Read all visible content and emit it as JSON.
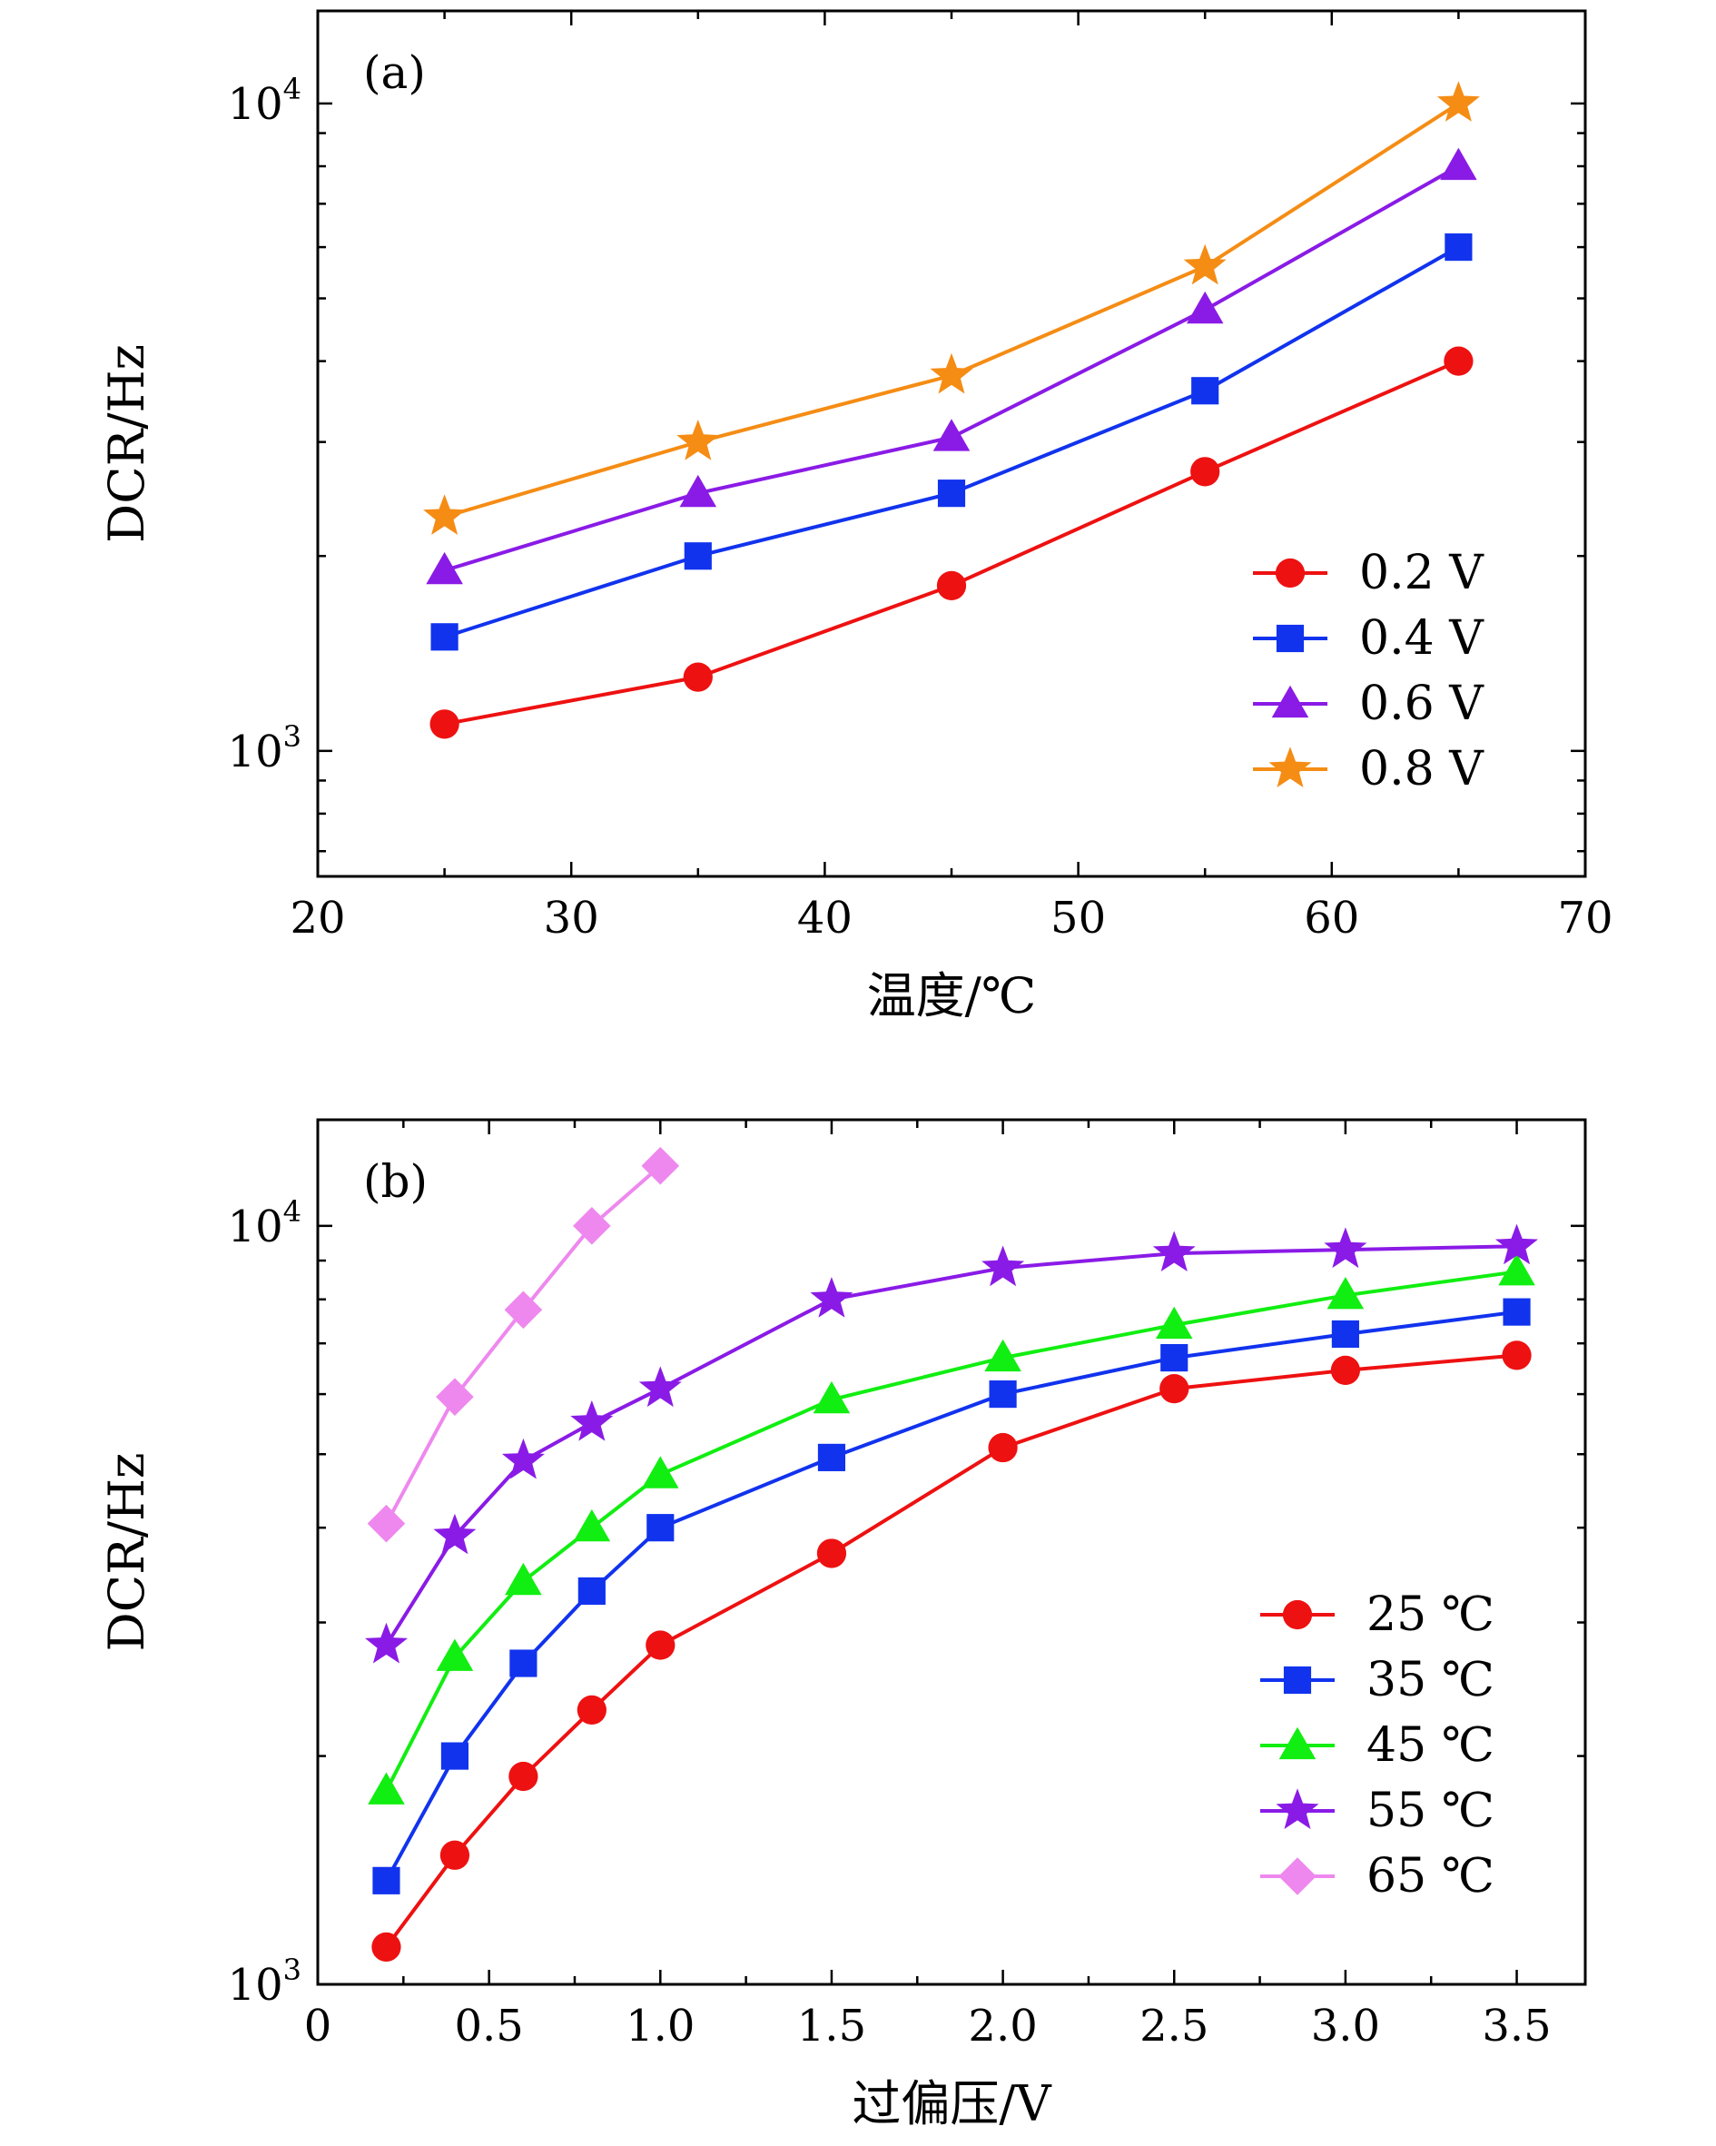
{
  "chart_data": [
    {
      "type": "line",
      "panel_label": "(a)",
      "xlabel": "温度/℃",
      "ylabel": "DCR/Hz",
      "x_ticks": [
        "20",
        "30",
        "40",
        "50",
        "60",
        "70"
      ],
      "y_ticks": [
        {
          "base": "10",
          "exp": "3"
        },
        {
          "base": "10",
          "exp": "4"
        }
      ],
      "xlim": [
        20,
        70
      ],
      "ylim": [
        640,
        13900
      ],
      "yscale": "log",
      "grid": false,
      "legend_position": "lower-right",
      "x": [
        25,
        35,
        45,
        55,
        65
      ],
      "series": [
        {
          "name": "0.2 V",
          "color": "#ee1111",
          "marker": "circle",
          "values": [
            1100,
            1300,
            1800,
            2700,
            4000
          ]
        },
        {
          "name": "0.4 V",
          "color": "#1133ee",
          "marker": "square",
          "values": [
            1500,
            2000,
            2500,
            3600,
            6000
          ]
        },
        {
          "name": "0.6 V",
          "color": "#8a1be6",
          "marker": "triangle",
          "values": [
            1900,
            2500,
            3050,
            4800,
            8000
          ]
        },
        {
          "name": "0.8 V",
          "color": "#f58c14",
          "marker": "star",
          "values": [
            2300,
            3000,
            3800,
            5600,
            10000
          ]
        }
      ]
    },
    {
      "type": "line",
      "panel_label": "(b)",
      "xlabel": "过偏压/V",
      "ylabel": "DCR/Hz",
      "x_ticks": [
        "0",
        "0.5",
        "1.0",
        "1.5",
        "2.0",
        "2.5",
        "3.0",
        "3.5"
      ],
      "y_ticks": [
        {
          "base": "10",
          "exp": "3"
        },
        {
          "base": "10",
          "exp": "4"
        }
      ],
      "xlim": [
        0,
        3.7
      ],
      "ylim": [
        1000,
        13800
      ],
      "yscale": "log",
      "grid": false,
      "legend_position": "lower-right",
      "series": [
        {
          "name": "25 ℃",
          "color": "#ee1111",
          "marker": "circle",
          "x": [
            0.2,
            0.4,
            0.6,
            0.8,
            1.0,
            1.5,
            2.0,
            2.5,
            3.0,
            3.5
          ],
          "values": [
            1120,
            1480,
            1880,
            2300,
            2800,
            3700,
            5100,
            6100,
            6450,
            6750
          ]
        },
        {
          "name": "35 ℃",
          "color": "#1133ee",
          "marker": "square",
          "x": [
            0.2,
            0.4,
            0.6,
            0.8,
            1.0,
            1.5,
            2.0,
            2.5,
            3.0,
            3.5
          ],
          "values": [
            1370,
            2000,
            2650,
            3300,
            4000,
            4950,
            6000,
            6700,
            7200,
            7700
          ]
        },
        {
          "name": "45 ℃",
          "color": "#11ee11",
          "marker": "triangle",
          "x": [
            0.2,
            0.4,
            0.6,
            0.8,
            1.0,
            1.5,
            2.0,
            2.5,
            3.0,
            3.5
          ],
          "values": [
            1800,
            2700,
            3400,
            4000,
            4700,
            5900,
            6700,
            7400,
            8100,
            8700
          ]
        },
        {
          "name": "55 ℃",
          "color": "#8a1be6",
          "marker": "star",
          "x": [
            0.2,
            0.4,
            0.6,
            0.8,
            1.0,
            1.5,
            2.0,
            2.5,
            3.0,
            3.5
          ],
          "values": [
            2800,
            3900,
            4900,
            5500,
            6100,
            8000,
            8800,
            9200,
            9300,
            9400
          ]
        },
        {
          "name": "65 ℃",
          "color": "#ee88ee",
          "marker": "diamond",
          "x": [
            0.2,
            0.4,
            0.6,
            0.8,
            1.0
          ],
          "values": [
            4050,
            5950,
            7750,
            10000,
            12000
          ]
        }
      ]
    }
  ]
}
